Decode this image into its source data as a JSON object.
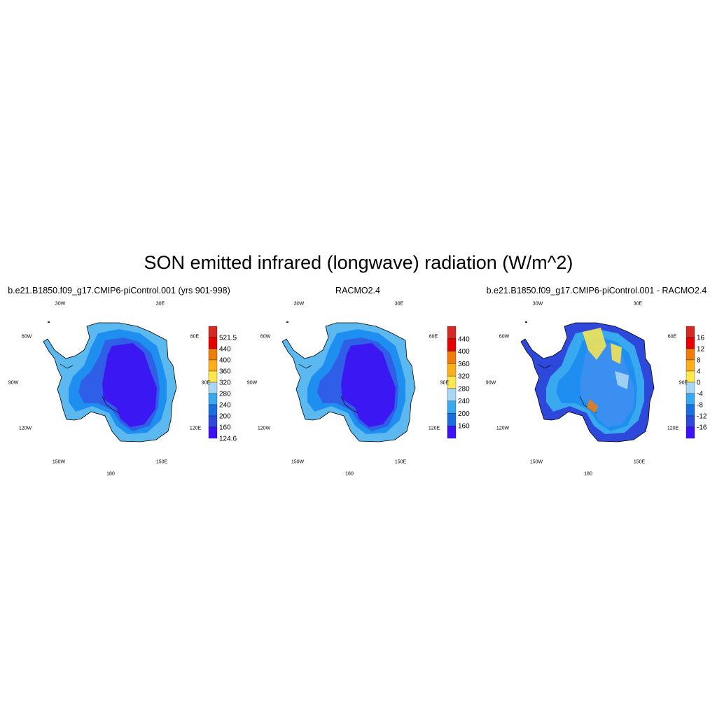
{
  "title": "SON emitted infrared (longwave) radiation (W/m^2)",
  "panels": [
    {
      "title": "b.e21.B1850.f09_g17.CMIP6-piControl.001 (yrs 901-998)",
      "colorbar": {
        "labels": [
          "521.5",
          "440",
          "400",
          "360",
          "320",
          "280",
          "240",
          "200",
          "160",
          "124.6"
        ],
        "colors": [
          "#d42a25",
          "#e60000",
          "#f07c0a",
          "#fbb01b",
          "#fde94d",
          "#a9d6f5",
          "#38a9ee",
          "#1a6ee0",
          "#2f48dc",
          "#3d12f7"
        ]
      },
      "palette": {
        "outer": "#5bb9f0",
        "mid": "#1e8ff0",
        "inner": "#2f5fe6",
        "core": "#3b18f2"
      }
    },
    {
      "title": "RACMO2.4",
      "colorbar": {
        "labels": [
          "440",
          "400",
          "360",
          "320",
          "280",
          "240",
          "200",
          "160"
        ],
        "colors": [
          "#d42a25",
          "#e60000",
          "#f07c0a",
          "#fbb01b",
          "#fde94d",
          "#a9d6f5",
          "#38a9ee",
          "#1a6ee0",
          "#3d12f7"
        ]
      },
      "palette": {
        "outer": "#5bb9f0",
        "mid": "#1e8ff0",
        "inner": "#2f5fe6",
        "core": "#3b18f2"
      }
    },
    {
      "title": "b.e21.B1850.f09_g17.CMIP6-piControl.001 - RACMO2.4",
      "colorbar": {
        "labels": [
          "16",
          "12",
          "8",
          "4",
          "0",
          "-4",
          "-8",
          "-12",
          "-16"
        ],
        "colors": [
          "#d42a25",
          "#e60000",
          "#f07c0a",
          "#fbb01b",
          "#fde94d",
          "#a9d6f5",
          "#38a9ee",
          "#1a6ee0",
          "#2f48dc",
          "#3d12f7"
        ]
      },
      "palette": {
        "outer": "#2f48dc",
        "mid": "#38a9ee",
        "inner": "#1e8ff0",
        "core": "#3b8ff0",
        "warm": "#fde94d"
      }
    }
  ],
  "grid_labels": {
    "top_left": "30W",
    "top_right": "30E",
    "upper_left": "60W",
    "upper_right": "60E",
    "mid_left": "90W",
    "mid_right": "90E",
    "lower_left": "120W",
    "lower_right": "120E",
    "bottom_left": "150W",
    "bottom_right": "150E",
    "bottom": "180"
  }
}
